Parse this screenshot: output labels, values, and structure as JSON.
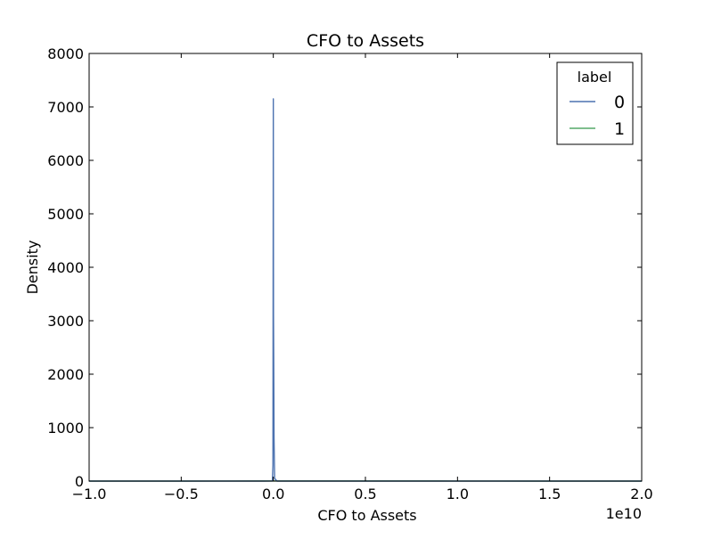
{
  "chart_data": {
    "type": "line",
    "title": "CFO to Assets",
    "xlabel": "CFO to Assets",
    "ylabel": "Density",
    "x_offset_text": "1e10",
    "xlim": [
      -1.0,
      2.0
    ],
    "ylim": [
      0,
      8000
    ],
    "x_ticks": [
      -1.0,
      -0.5,
      0.0,
      0.5,
      1.0,
      1.5,
      2.0
    ],
    "x_tick_labels": [
      "−1.0",
      "−0.5",
      "0.0",
      "0.5",
      "1.0",
      "1.5",
      "2.0"
    ],
    "y_ticks": [
      0,
      1000,
      2000,
      3000,
      4000,
      5000,
      6000,
      7000,
      8000
    ],
    "y_tick_labels": [
      "0",
      "1000",
      "2000",
      "3000",
      "4000",
      "5000",
      "6000",
      "7000",
      "8000"
    ],
    "grid": false,
    "legend": {
      "title": "label",
      "placement": "top-right"
    },
    "series": [
      {
        "name": "0",
        "color": "#4c72b0",
        "points": [
          [
            -1.0,
            0
          ],
          [
            -0.05,
            0
          ],
          [
            -0.005,
            2
          ],
          [
            -0.002,
            300
          ],
          [
            0.0,
            7150
          ],
          [
            0.001,
            3100
          ],
          [
            0.002,
            2400
          ],
          [
            0.004,
            800
          ],
          [
            0.007,
            50
          ],
          [
            0.02,
            0
          ],
          [
            2.0,
            0
          ]
        ]
      },
      {
        "name": "1",
        "color": "#55a868",
        "points": [
          [
            -1.0,
            0
          ],
          [
            -0.5,
            0
          ],
          [
            -0.3,
            1
          ],
          [
            -0.1,
            2
          ],
          [
            0.0,
            2
          ],
          [
            0.3,
            2
          ],
          [
            0.6,
            2
          ],
          [
            0.9,
            2
          ],
          [
            1.2,
            1
          ],
          [
            1.4,
            0
          ],
          [
            2.0,
            0
          ]
        ]
      }
    ]
  }
}
